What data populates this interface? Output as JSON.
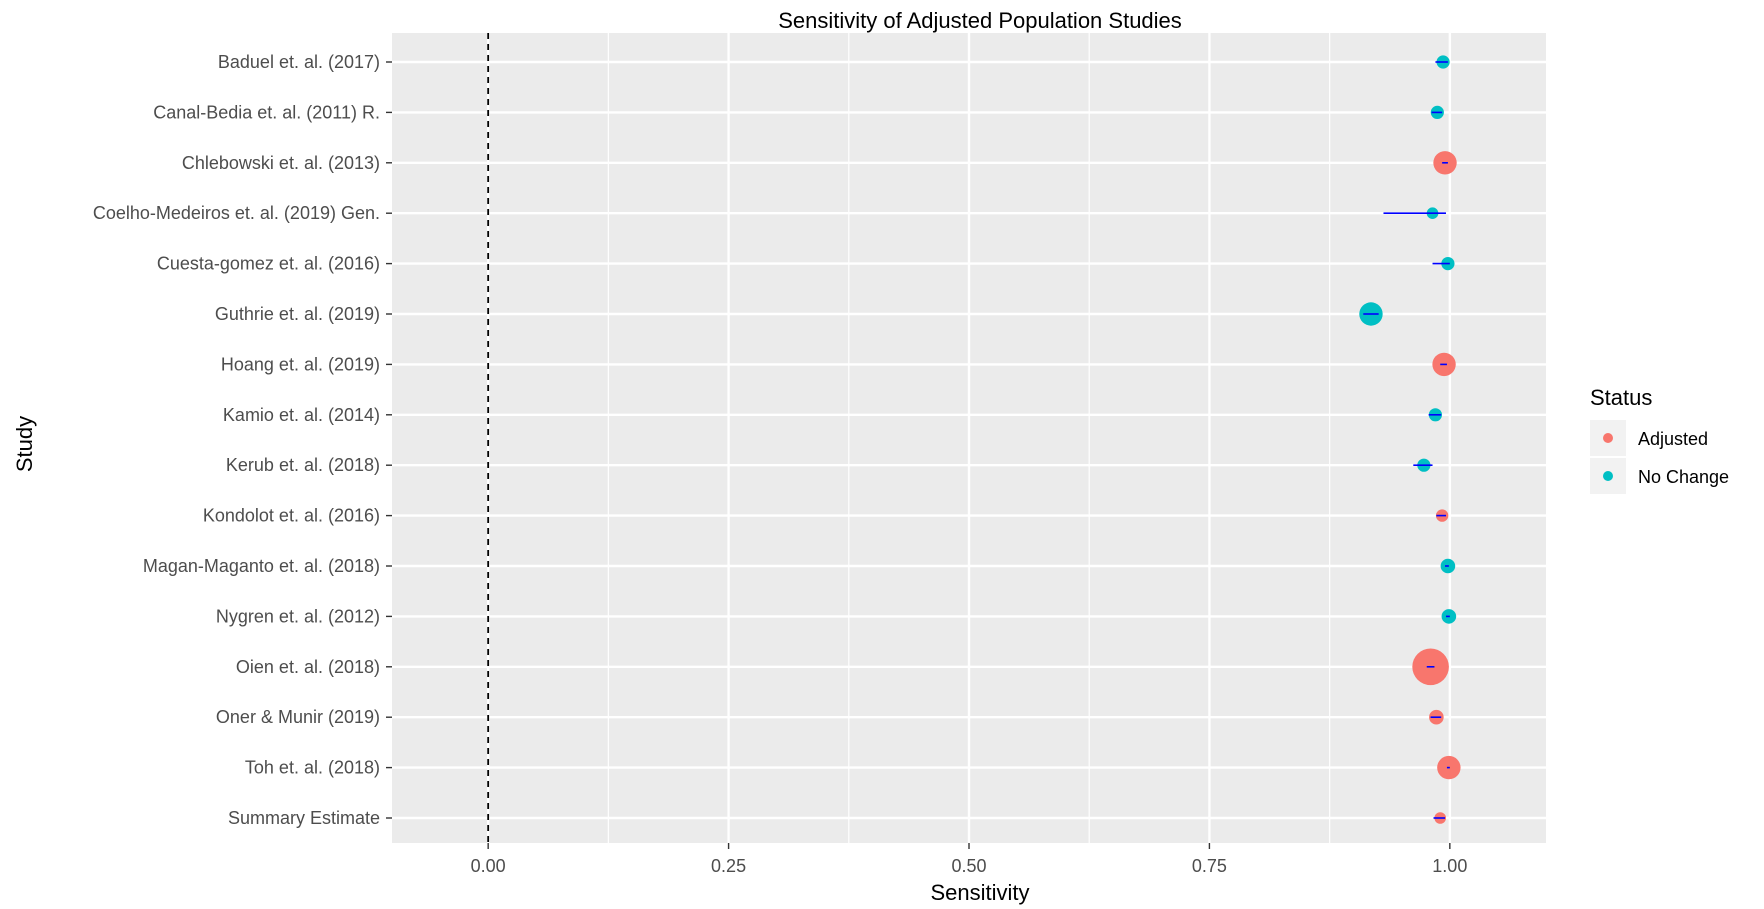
{
  "chart_data": {
    "type": "scatter",
    "title": "Sensitivity of Adjusted Population Studies",
    "xlabel": "Sensitivity",
    "ylabel": "Study",
    "xlim": [
      -0.1,
      1.1
    ],
    "x_ticks": [
      0.0,
      0.25,
      0.5,
      0.75,
      1.0
    ],
    "x_tick_labels": [
      "0.00",
      "0.25",
      "0.50",
      "0.75",
      "1.00"
    ],
    "reference_line": {
      "x": 0.0,
      "style": "dashed",
      "color": "#000000"
    },
    "grid": true,
    "legend": {
      "title": "Status",
      "placement": "right",
      "entries": [
        {
          "label": "Adjusted",
          "color": "#F8766D"
        },
        {
          "label": "No Change",
          "color": "#00BFC4"
        }
      ]
    },
    "ci_color": "#0000FF",
    "categories": [
      "Baduel et. al. (2017)",
      "Canal-Bedia et. al. (2011) R.",
      "Chlebowski et. al. (2013)",
      "Coelho-Medeiros et. al. (2019) Gen.",
      "Cuesta-gomez et. al. (2016)",
      "Guthrie et. al. (2019)",
      "Hoang et. al. (2019)",
      "Kamio et. al. (2014)",
      "Kerub et. al. (2018)",
      "Kondolot et. al. (2016)",
      "Magan-Maganto et. al. (2018)",
      "Nygren et. al. (2012)",
      "Oien et. al. (2018)",
      "Oner & Munir (2019)",
      "Toh et. al. (2018)",
      "Summary Estimate"
    ],
    "points": [
      {
        "study": "Baduel et. al. (2017)",
        "estimate": 0.993,
        "ci_low": 0.985,
        "ci_high": 0.998,
        "status": "No Change",
        "weight": 1.2
      },
      {
        "study": "Canal-Bedia et. al. (2011) R.",
        "estimate": 0.987,
        "ci_low": 0.981,
        "ci_high": 0.992,
        "status": "No Change",
        "weight": 1.2
      },
      {
        "study": "Chlebowski et. al. (2013)",
        "estimate": 0.995,
        "ci_low": 0.992,
        "ci_high": 0.998,
        "status": "Adjusted",
        "weight": 3.5
      },
      {
        "study": "Coelho-Medeiros et. al. (2019) Gen.",
        "estimate": 0.982,
        "ci_low": 0.931,
        "ci_high": 0.996,
        "status": "No Change",
        "weight": 0.8
      },
      {
        "study": "Cuesta-gomez et. al. (2016)",
        "estimate": 0.998,
        "ci_low": 0.982,
        "ci_high": 1.0,
        "status": "No Change",
        "weight": 1.2
      },
      {
        "study": "Guthrie et. al. (2019)",
        "estimate": 0.918,
        "ci_low": 0.91,
        "ci_high": 0.926,
        "status": "No Change",
        "weight": 3.5
      },
      {
        "study": "Hoang et. al. (2019)",
        "estimate": 0.994,
        "ci_low": 0.99,
        "ci_high": 0.997,
        "status": "Adjusted",
        "weight": 3.5
      },
      {
        "study": "Kamio et. al. (2014)",
        "estimate": 0.985,
        "ci_low": 0.978,
        "ci_high": 0.991,
        "status": "No Change",
        "weight": 1.2
      },
      {
        "study": "Kerub et. al. (2018)",
        "estimate": 0.973,
        "ci_low": 0.962,
        "ci_high": 0.982,
        "status": "No Change",
        "weight": 1.2
      },
      {
        "study": "Kondolot et. al. (2016)",
        "estimate": 0.992,
        "ci_low": 0.986,
        "ci_high": 0.996,
        "status": "Adjusted",
        "weight": 1.0
      },
      {
        "study": "Magan-Maganto et. al. (2018)",
        "estimate": 0.998,
        "ci_low": 0.995,
        "ci_high": 0.999,
        "status": "No Change",
        "weight": 1.5
      },
      {
        "study": "Nygren et. al. (2012)",
        "estimate": 0.999,
        "ci_low": 0.996,
        "ci_high": 1.0,
        "status": "No Change",
        "weight": 1.5
      },
      {
        "study": "Oien et. al. (2018)",
        "estimate": 0.98,
        "ci_low": 0.976,
        "ci_high": 0.984,
        "status": "Adjusted",
        "weight": 6.5
      },
      {
        "study": "Oner & Munir (2019)",
        "estimate": 0.986,
        "ci_low": 0.98,
        "ci_high": 0.991,
        "status": "Adjusted",
        "weight": 1.5
      },
      {
        "study": "Toh et. al. (2018)",
        "estimate": 0.999,
        "ci_low": 0.997,
        "ci_high": 1.0,
        "status": "Adjusted",
        "weight": 3.5
      },
      {
        "study": "Summary Estimate",
        "estimate": 0.99,
        "ci_low": 0.983,
        "ci_high": 0.995,
        "status": "Adjusted",
        "weight": 0.8
      }
    ]
  }
}
